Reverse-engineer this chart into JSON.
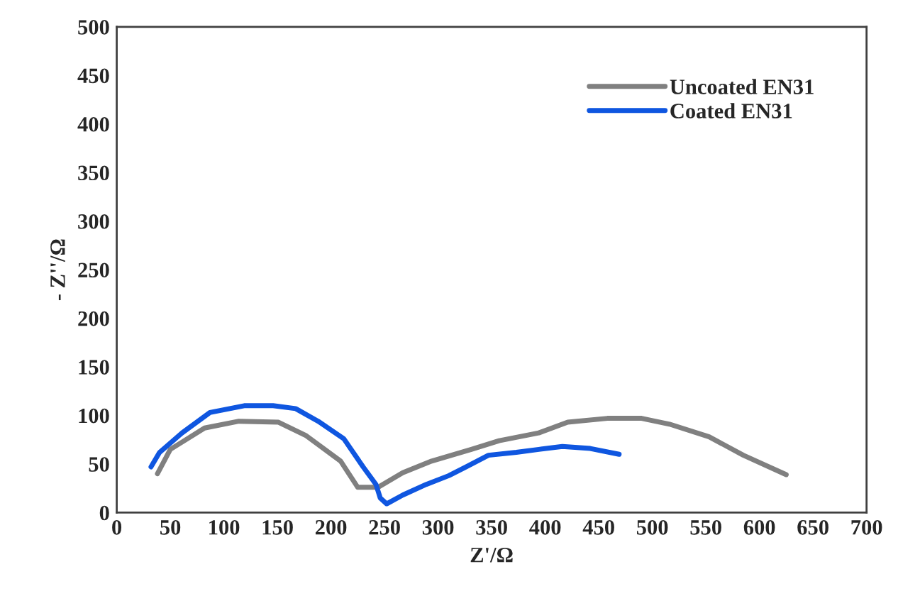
{
  "chart_data": {
    "type": "line",
    "xlabel": "Z'/Ω",
    "ylabel": "- Z''/Ω",
    "xlim": [
      0,
      700
    ],
    "xticks": [
      0,
      50,
      100,
      150,
      200,
      250,
      300,
      350,
      400,
      450,
      500,
      550,
      600,
      650,
      700
    ],
    "ylim": [
      0,
      500
    ],
    "yticks": [
      0,
      50,
      100,
      150,
      200,
      250,
      300,
      350,
      400,
      450,
      500
    ],
    "grid": false,
    "legend": "top right",
    "marker": "none",
    "line_style": "solid",
    "series": [
      {
        "name": "Uncoated EN31",
        "color": "#808080",
        "x": [
          38,
          50,
          82,
          114,
          151,
          177,
          209,
          225,
          244,
          267,
          294,
          331,
          357,
          394,
          421,
          458,
          490,
          516,
          553,
          585,
          625
        ],
        "values": [
          40,
          65,
          87,
          94,
          93,
          79,
          53,
          26,
          26,
          41,
          53,
          65,
          74,
          82,
          93,
          97,
          97,
          91,
          78,
          59,
          39
        ]
      },
      {
        "name": "Coated EN31",
        "color": "#0f56e0",
        "x": [
          32,
          40,
          61,
          87,
          119,
          146,
          167,
          188,
          212,
          230,
          242,
          246,
          252,
          267,
          289,
          310,
          326,
          347,
          373,
          394,
          416,
          442,
          469
        ],
        "values": [
          47,
          62,
          82,
          103,
          110,
          110,
          107,
          94,
          76,
          47,
          29,
          15,
          9,
          18,
          29,
          38,
          47,
          59,
          62,
          65,
          68,
          66,
          60
        ]
      }
    ]
  }
}
